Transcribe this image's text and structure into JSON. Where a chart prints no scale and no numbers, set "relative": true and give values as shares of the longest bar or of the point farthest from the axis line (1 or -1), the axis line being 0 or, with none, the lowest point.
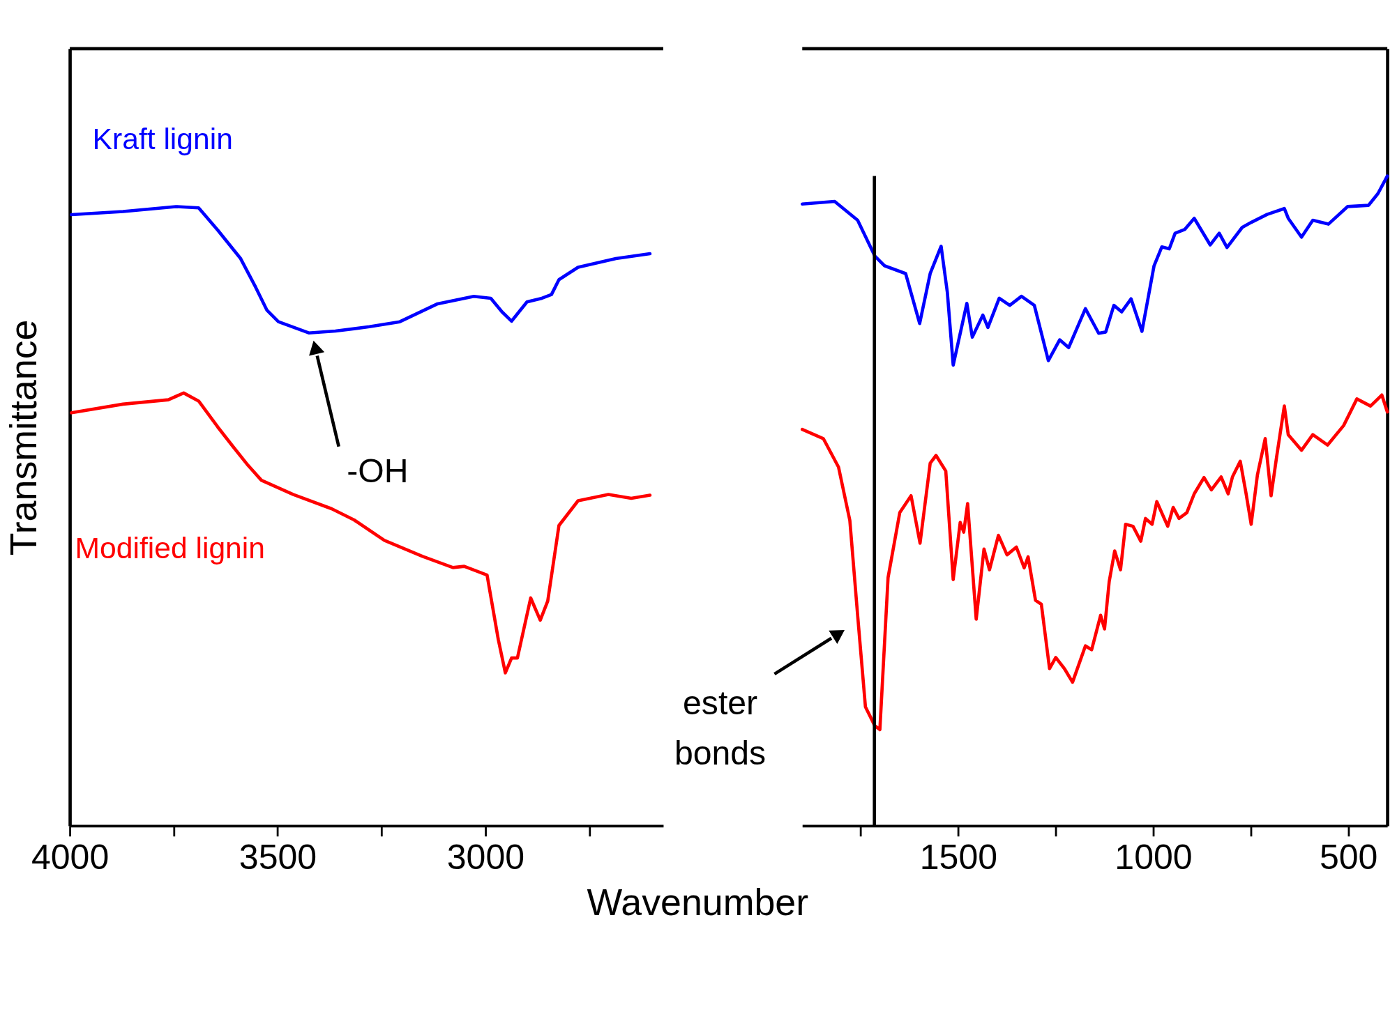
{
  "chart_data": [
    {
      "type": "line",
      "relative": true,
      "ylabel": "Transmittance",
      "xlabel": "Wavenumber",
      "xlim": [
        4000,
        2572
      ],
      "xticks": [
        4000,
        {
          "value": 3750,
          "label": null
        },
        3500,
        {
          "value": 3250,
          "label": null
        },
        3000,
        {
          "value": 2750,
          "label": null
        }
      ],
      "series": [
        {
          "name": "Kraft lignin",
          "color": "#0000ff",
          "x": [
            3996,
            3872,
            3745,
            3690,
            3644,
            3589,
            3553,
            3526,
            3498,
            3425,
            3361,
            3279,
            3206,
            3115,
            3028,
            2987,
            2960,
            2937,
            2900,
            2864,
            2841,
            2823,
            2777,
            2686,
            2604
          ],
          "values": [
            0.987,
            0.992,
            1.0,
            0.998,
            0.962,
            0.916,
            0.87,
            0.833,
            0.814,
            0.796,
            0.799,
            0.806,
            0.814,
            0.843,
            0.855,
            0.852,
            0.83,
            0.815,
            0.846,
            0.852,
            0.858,
            0.882,
            0.902,
            0.916,
            0.924
          ]
        },
        {
          "name": "Modified lignin",
          "color": "#ff0000",
          "x": [
            3996,
            3872,
            3763,
            3726,
            3690,
            3644,
            3608,
            3571,
            3539,
            3462,
            3370,
            3316,
            3243,
            3151,
            3078,
            3051,
            2996,
            2969,
            2952,
            2937,
            2923,
            2891,
            2868,
            2850,
            2823,
            2777,
            2704,
            2649,
            2604
          ],
          "values": [
            0.667,
            0.681,
            0.688,
            0.699,
            0.686,
            0.644,
            0.613,
            0.582,
            0.558,
            0.535,
            0.512,
            0.494,
            0.461,
            0.435,
            0.417,
            0.419,
            0.405,
            0.301,
            0.247,
            0.271,
            0.271,
            0.368,
            0.332,
            0.363,
            0.485,
            0.525,
            0.535,
            0.529,
            0.534
          ]
        }
      ],
      "annotations": [
        "-OH"
      ]
    },
    {
      "type": "line",
      "relative": true,
      "xlim": [
        1900,
        400
      ],
      "xticks": [
        {
          "value": 1750,
          "label": null
        },
        1500,
        {
          "value": 1250,
          "label": null
        },
        1000,
        {
          "value": 750,
          "label": null
        },
        500
      ],
      "series": [
        {
          "color": "#0000ff",
          "x": [
            1900,
            1817,
            1758,
            1714,
            1689,
            1635,
            1599,
            1572,
            1544,
            1528,
            1513,
            1478,
            1464,
            1437,
            1424,
            1395,
            1368,
            1338,
            1305,
            1269,
            1240,
            1217,
            1174,
            1140,
            1122,
            1101,
            1081,
            1057,
            1029,
            998,
            978,
            959,
            944,
            919,
            895,
            854,
            831,
            811,
            772,
            748,
            708,
            664,
            654,
            620,
            591,
            551,
            502,
            448,
            424,
            400
          ],
          "values": [
            0.957,
            0.961,
            0.932,
            0.877,
            0.862,
            0.85,
            0.773,
            0.85,
            0.892,
            0.821,
            0.709,
            0.804,
            0.752,
            0.786,
            0.767,
            0.812,
            0.801,
            0.815,
            0.801,
            0.716,
            0.748,
            0.736,
            0.796,
            0.758,
            0.76,
            0.801,
            0.791,
            0.811,
            0.761,
            0.862,
            0.891,
            0.888,
            0.912,
            0.918,
            0.935,
            0.894,
            0.912,
            0.89,
            0.921,
            0.929,
            0.941,
            0.95,
            0.935,
            0.906,
            0.932,
            0.926,
            0.953,
            0.955,
            0.973,
            1.0
          ]
        },
        {
          "color": "#ff0000",
          "x": [
            1900,
            1846,
            1807,
            1778,
            1758,
            1738,
            1714,
            1701,
            1680,
            1650,
            1621,
            1598,
            1572,
            1557,
            1532,
            1513,
            1495,
            1486,
            1476,
            1454,
            1434,
            1420,
            1397,
            1375,
            1351,
            1331,
            1321,
            1302,
            1287,
            1266,
            1250,
            1228,
            1207,
            1174,
            1158,
            1135,
            1125,
            1113,
            1099,
            1084,
            1071,
            1052,
            1032,
            1020,
            1003,
            991,
            963,
            949,
            934,
            914,
            895,
            870,
            851,
            826,
            808,
            797,
            777,
            762,
            749,
            733,
            713,
            698,
            684,
            664,
            654,
            620,
            591,
            553,
            512,
            478,
            443,
            414,
            400
          ],
          "values": [
            0.61,
            0.596,
            0.552,
            0.47,
            0.324,
            0.183,
            0.154,
            0.148,
            0.382,
            0.482,
            0.508,
            0.435,
            0.558,
            0.57,
            0.546,
            0.379,
            0.467,
            0.452,
            0.496,
            0.318,
            0.426,
            0.394,
            0.447,
            0.417,
            0.429,
            0.397,
            0.414,
            0.347,
            0.341,
            0.242,
            0.259,
            0.242,
            0.221,
            0.277,
            0.271,
            0.324,
            0.303,
            0.376,
            0.423,
            0.394,
            0.464,
            0.461,
            0.438,
            0.473,
            0.464,
            0.499,
            0.461,
            0.49,
            0.473,
            0.482,
            0.511,
            0.536,
            0.517,
            0.537,
            0.511,
            0.537,
            0.561,
            0.511,
            0.464,
            0.54,
            0.596,
            0.508,
            0.567,
            0.646,
            0.602,
            0.578,
            0.602,
            0.586,
            0.616,
            0.657,
            0.646,
            0.663,
            0.637
          ]
        }
      ],
      "ref_lines": [
        {
          "axis": "x",
          "value": 1715,
          "color": "#000000"
        }
      ],
      "annotations": [
        "ester bonds"
      ]
    }
  ]
}
